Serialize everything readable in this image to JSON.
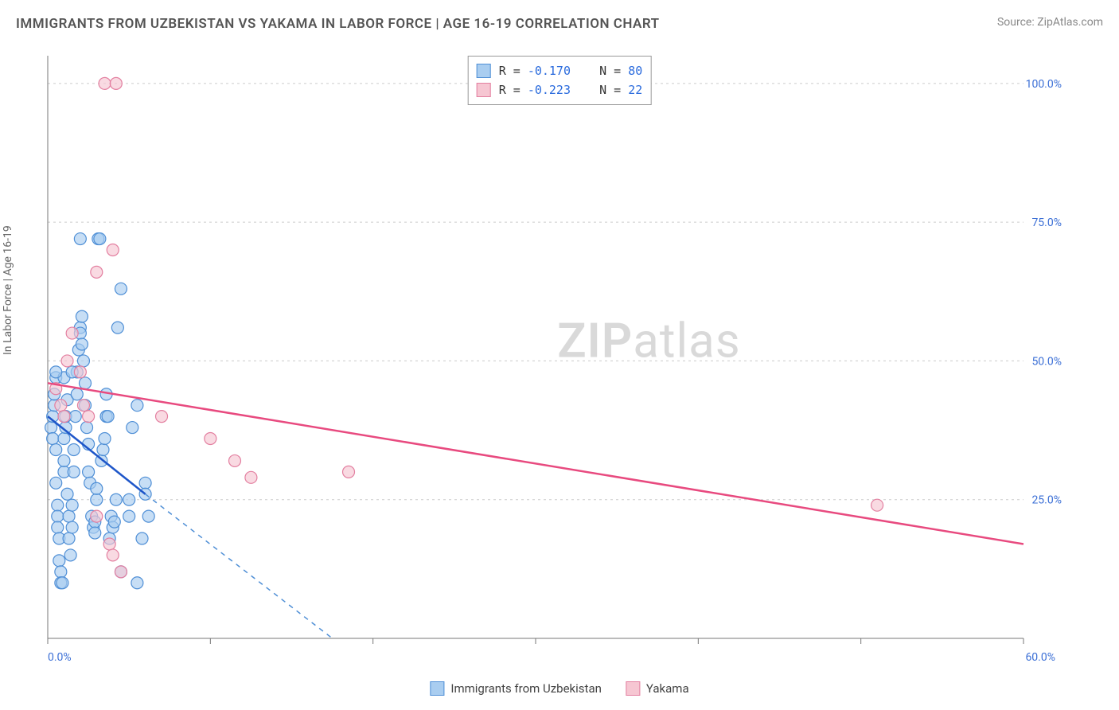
{
  "title": "IMMIGRANTS FROM UZBEKISTAN VS YAKAMA IN LABOR FORCE | AGE 16-19 CORRELATION CHART",
  "source": "Source: ZipAtlas.com",
  "watermark": "ZIPatlas",
  "y_axis_label": "In Labor Force | Age 16-19",
  "colors": {
    "series_a_fill": "#a9cdf0",
    "series_a_stroke": "#4f8fd6",
    "series_a_line": "#1e56c9",
    "series_b_fill": "#f6c6d2",
    "series_b_stroke": "#e37fa0",
    "series_b_line": "#e84a7f",
    "grid": "#cccccc",
    "axis": "#777777",
    "tick_text": "#3b6fd6",
    "background": "#ffffff"
  },
  "chart": {
    "type": "scatter",
    "xlim": [
      0,
      60
    ],
    "ylim": [
      0,
      105
    ],
    "y_ticks": [
      25,
      50,
      75,
      100
    ],
    "y_tick_labels": [
      "25.0%",
      "50.0%",
      "75.0%",
      "100.0%"
    ],
    "x_ticks": [
      0,
      10,
      20,
      30,
      40,
      50,
      60
    ],
    "x_tick_labels_shown": {
      "0": "0.0%",
      "60": "60.0%"
    },
    "marker_radius": 7.5,
    "marker_opacity": 0.65,
    "line_width": 2.5
  },
  "correlation_legend": [
    {
      "r_label": "R =",
      "r_value": "-0.170",
      "n_label": "N =",
      "n_value": "80",
      "swatch": "a"
    },
    {
      "r_label": "R =",
      "r_value": "-0.223",
      "n_label": "N =",
      "n_value": "22",
      "swatch": "b"
    }
  ],
  "series_legend": [
    {
      "label": "Immigrants from Uzbekistan",
      "swatch": "a"
    },
    {
      "label": "Yakama",
      "swatch": "b"
    }
  ],
  "series_a": {
    "name": "Immigrants from Uzbekistan",
    "trend": {
      "x1": 0,
      "y1": 40,
      "x2": 6,
      "y2": 26
    },
    "trend_extrapolate_dashed": {
      "x1": 6,
      "y1": 26,
      "x2": 17.5,
      "y2": 0
    },
    "points": [
      [
        0.2,
        38
      ],
      [
        0.3,
        40
      ],
      [
        0.3,
        36
      ],
      [
        0.4,
        42
      ],
      [
        0.4,
        44
      ],
      [
        0.5,
        47
      ],
      [
        0.5,
        34
      ],
      [
        0.5,
        28
      ],
      [
        0.6,
        24
      ],
      [
        0.6,
        22
      ],
      [
        0.6,
        20
      ],
      [
        0.7,
        18
      ],
      [
        0.7,
        14
      ],
      [
        0.8,
        12
      ],
      [
        0.8,
        10
      ],
      [
        0.9,
        10
      ],
      [
        1.0,
        30
      ],
      [
        1.0,
        32
      ],
      [
        1.0,
        36
      ],
      [
        1.1,
        38
      ],
      [
        1.1,
        40
      ],
      [
        1.2,
        43
      ],
      [
        1.2,
        26
      ],
      [
        1.3,
        22
      ],
      [
        1.3,
        18
      ],
      [
        1.4,
        15
      ],
      [
        1.5,
        20
      ],
      [
        1.5,
        24
      ],
      [
        1.6,
        30
      ],
      [
        1.6,
        34
      ],
      [
        1.7,
        40
      ],
      [
        1.8,
        44
      ],
      [
        1.8,
        48
      ],
      [
        1.9,
        52
      ],
      [
        2.0,
        56
      ],
      [
        2.0,
        55
      ],
      [
        2.1,
        58
      ],
      [
        2.1,
        53
      ],
      [
        2.2,
        50
      ],
      [
        2.3,
        46
      ],
      [
        2.3,
        42
      ],
      [
        2.4,
        38
      ],
      [
        2.5,
        35
      ],
      [
        2.5,
        30
      ],
      [
        2.6,
        28
      ],
      [
        2.7,
        22
      ],
      [
        2.8,
        20
      ],
      [
        2.9,
        21
      ],
      [
        2.9,
        19
      ],
      [
        3.0,
        25
      ],
      [
        3.0,
        27
      ],
      [
        3.1,
        72
      ],
      [
        3.2,
        72
      ],
      [
        3.3,
        32
      ],
      [
        3.4,
        34
      ],
      [
        3.5,
        36
      ],
      [
        3.6,
        40
      ],
      [
        3.6,
        44
      ],
      [
        3.7,
        40
      ],
      [
        3.8,
        18
      ],
      [
        3.9,
        22
      ],
      [
        4.0,
        20
      ],
      [
        4.1,
        21
      ],
      [
        4.2,
        25
      ],
      [
        4.3,
        56
      ],
      [
        4.5,
        63
      ],
      [
        4.5,
        12
      ],
      [
        5.0,
        22
      ],
      [
        5.0,
        25
      ],
      [
        5.2,
        38
      ],
      [
        5.5,
        42
      ],
      [
        5.5,
        10
      ],
      [
        5.8,
        18
      ],
      [
        6.0,
        28
      ],
      [
        6.0,
        26
      ],
      [
        6.2,
        22
      ],
      [
        2.0,
        72
      ],
      [
        1.0,
        47
      ],
      [
        1.5,
        48
      ],
      [
        0.5,
        48
      ]
    ]
  },
  "series_b": {
    "name": "Yakama",
    "trend": {
      "x1": 0,
      "y1": 46,
      "x2": 60,
      "y2": 17
    },
    "points": [
      [
        0.5,
        45
      ],
      [
        0.8,
        42
      ],
      [
        1.0,
        40
      ],
      [
        1.2,
        50
      ],
      [
        1.5,
        55
      ],
      [
        2.0,
        48
      ],
      [
        2.2,
        42
      ],
      [
        2.5,
        40
      ],
      [
        3.8,
        17
      ],
      [
        4.0,
        15
      ],
      [
        3.0,
        66
      ],
      [
        4.0,
        70
      ],
      [
        3.5,
        100
      ],
      [
        4.2,
        100
      ],
      [
        7.0,
        40
      ],
      [
        10.0,
        36
      ],
      [
        11.5,
        32
      ],
      [
        12.5,
        29
      ],
      [
        18.5,
        30
      ],
      [
        51.0,
        24
      ],
      [
        3.0,
        22
      ],
      [
        4.5,
        12
      ]
    ]
  }
}
